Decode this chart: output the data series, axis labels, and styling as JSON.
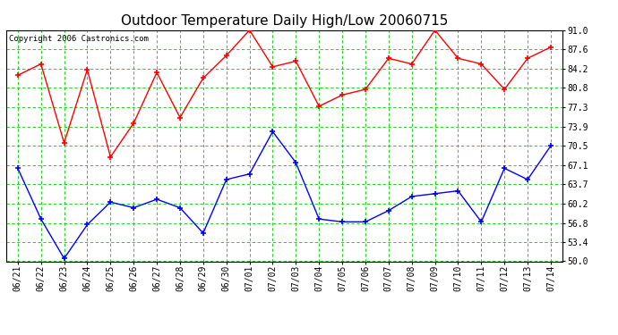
{
  "title": "Outdoor Temperature Daily High/Low 20060715",
  "copyright": "Copyright 2006 Castronics.com",
  "dates": [
    "06/21",
    "06/22",
    "06/23",
    "06/24",
    "06/25",
    "06/26",
    "06/27",
    "06/28",
    "06/29",
    "06/30",
    "07/01",
    "07/02",
    "07/03",
    "07/04",
    "07/05",
    "07/06",
    "07/07",
    "07/08",
    "07/09",
    "07/10",
    "07/11",
    "07/12",
    "07/13",
    "07/14"
  ],
  "high_temps": [
    83.0,
    85.0,
    71.0,
    84.0,
    68.5,
    74.5,
    83.5,
    75.5,
    82.5,
    86.5,
    91.0,
    84.5,
    85.5,
    77.5,
    79.5,
    80.5,
    86.0,
    85.0,
    91.0,
    86.0,
    85.0,
    80.5,
    86.0,
    88.0
  ],
  "low_temps": [
    66.5,
    57.5,
    50.5,
    56.5,
    60.5,
    59.5,
    61.0,
    59.5,
    55.0,
    64.5,
    65.5,
    73.0,
    67.5,
    57.5,
    57.0,
    57.0,
    59.0,
    61.5,
    62.0,
    62.5,
    57.0,
    66.5,
    64.5,
    70.5
  ],
  "ylim": [
    50.0,
    91.0
  ],
  "yticks": [
    50.0,
    53.4,
    56.8,
    60.2,
    63.7,
    67.1,
    70.5,
    73.9,
    77.3,
    80.8,
    84.2,
    87.6,
    91.0
  ],
  "high_color": "#ff0000",
  "low_color": "#0000ff",
  "grid_color": "#00cc00",
  "bg_color": "#ffffff",
  "title_fontsize": 11,
  "tick_fontsize": 7,
  "copyright_fontsize": 6.5
}
